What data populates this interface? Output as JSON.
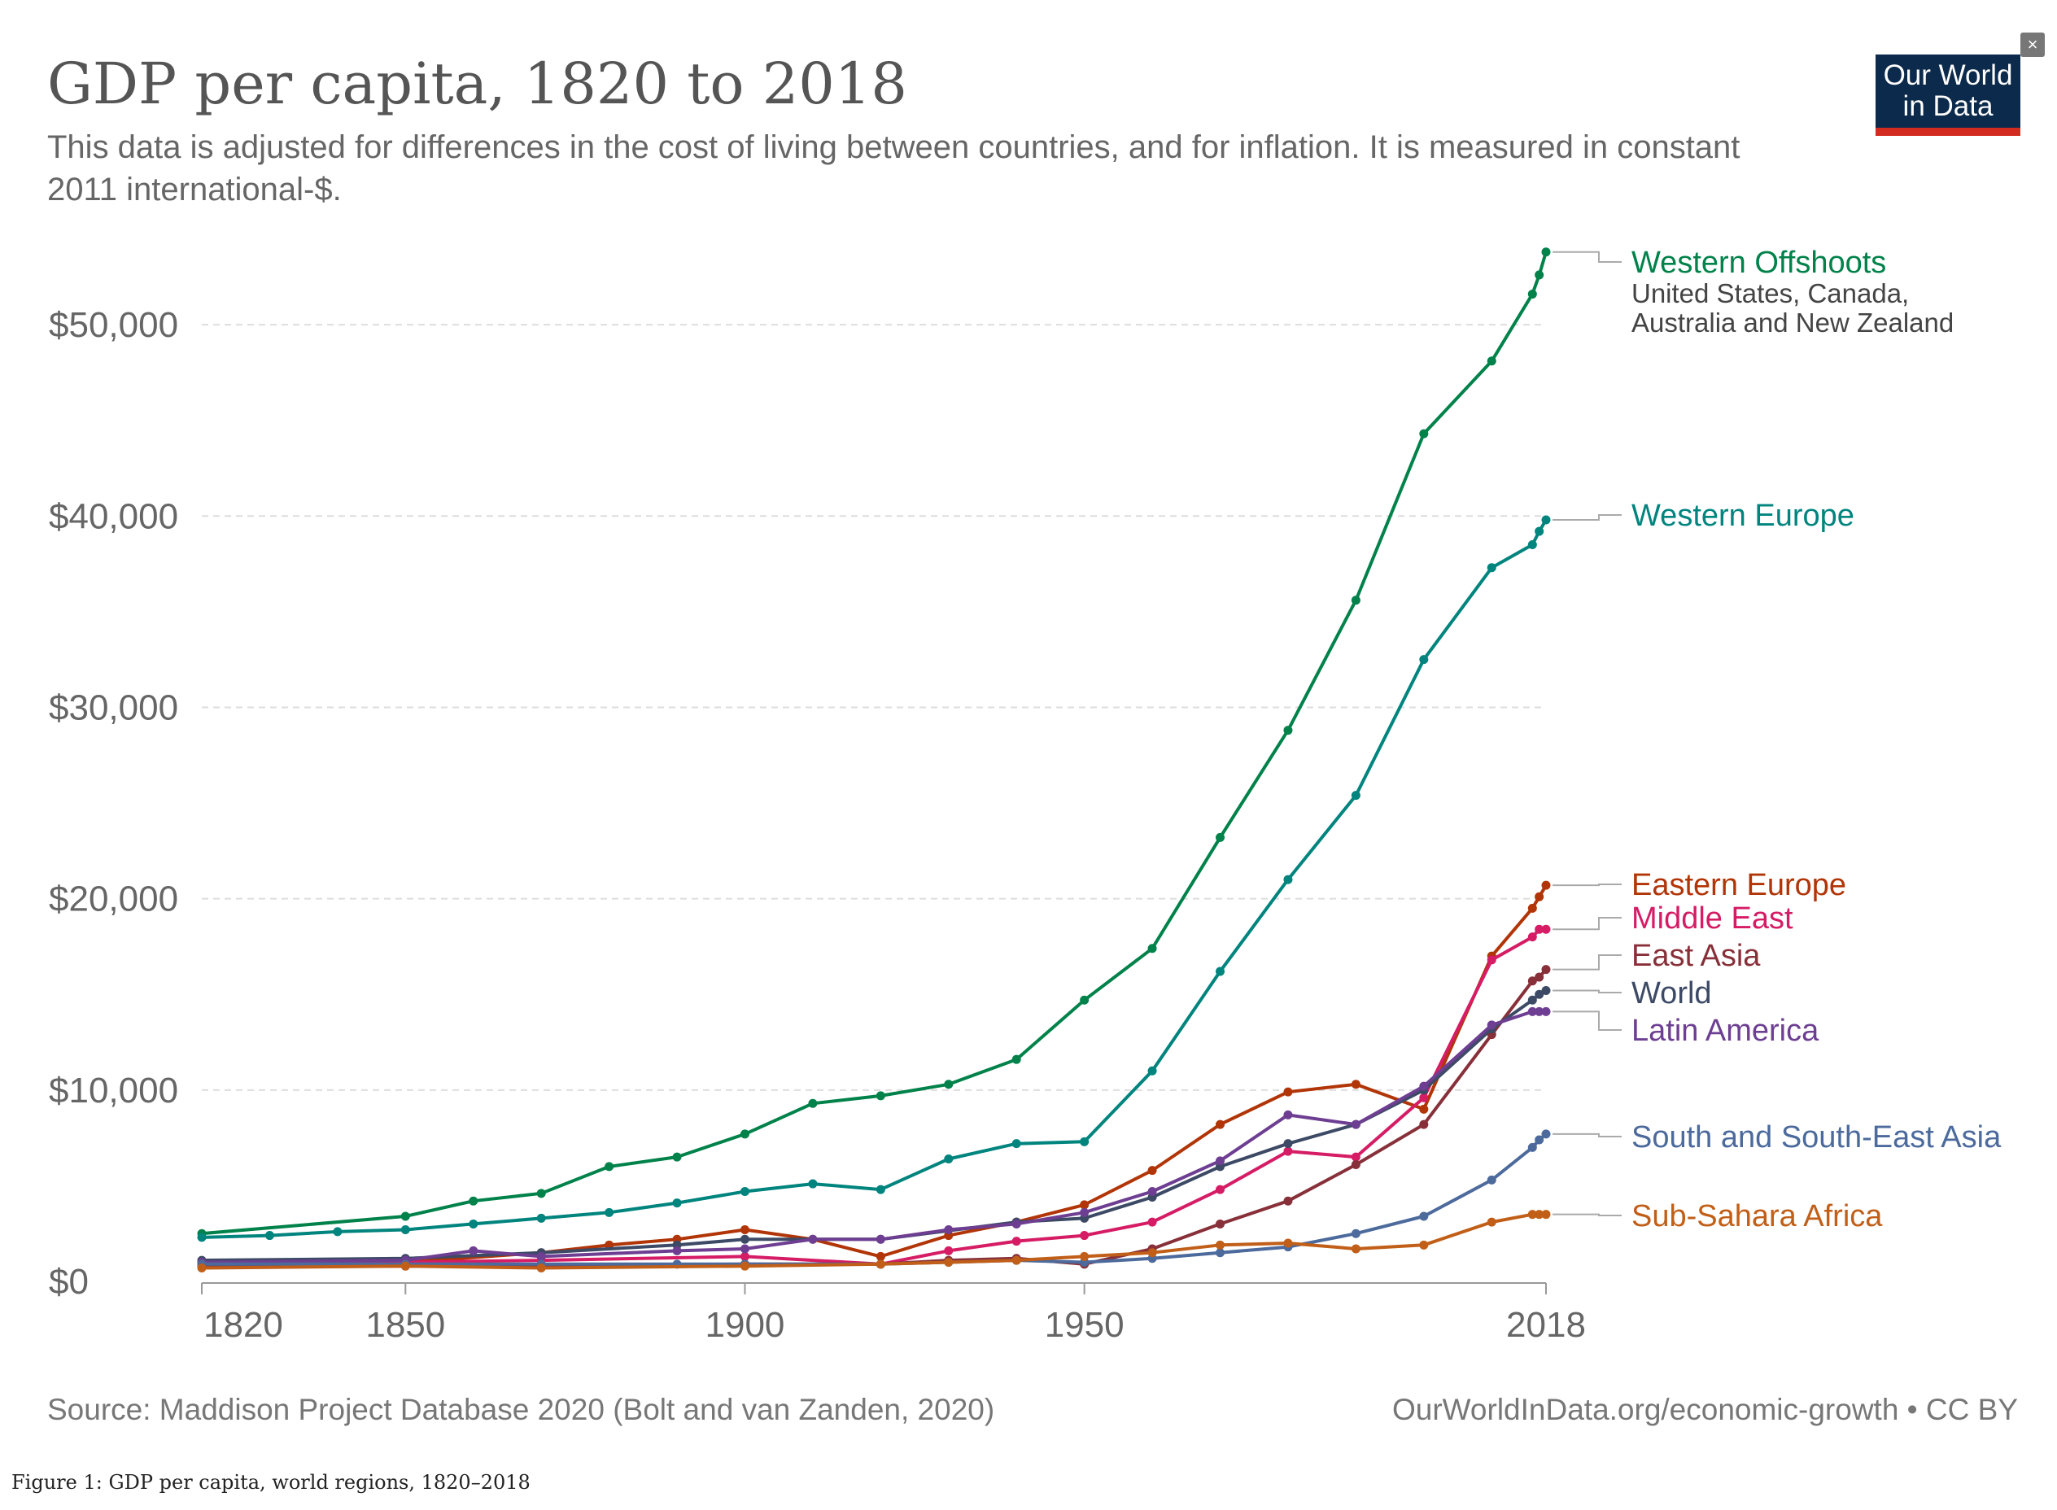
{
  "header": {
    "title": "GDP per capita, 1820 to 2018",
    "subtitle": "This data is adjusted for differences in the cost of living between countries, and for inflation. It is measured in constant 2011 international-$.",
    "logo_line1": "Our World",
    "logo_line2": "in Data",
    "close_symbol": "×"
  },
  "footer": {
    "source": "Source: Maddison Project Database 2020 (Bolt and van Zanden, 2020)",
    "credit": "OurWorldInData.org/economic-growth • CC BY"
  },
  "caption": "Figure 1: GDP per capita, world regions, 1820–2018",
  "colors": {
    "grid": "#dddddd",
    "axis_text": "#666666",
    "background": "#ffffff",
    "logo_bg": "#0c2a4b",
    "logo_bar": "#d42b21"
  },
  "chart_data": {
    "type": "line",
    "title": "GDP per capita, 1820 to 2018",
    "xlabel": "",
    "ylabel": "",
    "xlim": [
      1820,
      2018
    ],
    "ylim": [
      0,
      54000
    ],
    "x_ticks": [
      1820,
      1850,
      1900,
      1950,
      2018
    ],
    "y_ticks": [
      0,
      10000,
      20000,
      30000,
      40000,
      50000
    ],
    "y_tick_labels": [
      "$0",
      "$10,000",
      "$20,000",
      "$30,000",
      "$40,000",
      "$50,000"
    ],
    "grid": true,
    "legend": "right, labels at line ends",
    "series": [
      {
        "name": "Western Offshoots",
        "sublabel": "United States, Canada, Australia and New Zealand",
        "color": "#00824a",
        "points": [
          [
            1820,
            2500
          ],
          [
            1850,
            3400
          ],
          [
            1860,
            4200
          ],
          [
            1870,
            4600
          ],
          [
            1880,
            6000
          ],
          [
            1890,
            6500
          ],
          [
            1900,
            7700
          ],
          [
            1910,
            9300
          ],
          [
            1920,
            9700
          ],
          [
            1930,
            10300
          ],
          [
            1940,
            11600
          ],
          [
            1950,
            14700
          ],
          [
            1960,
            17400
          ],
          [
            1970,
            23200
          ],
          [
            1980,
            28800
          ],
          [
            1990,
            35600
          ],
          [
            2000,
            44300
          ],
          [
            2010,
            48100
          ],
          [
            2016,
            51600
          ],
          [
            2017,
            52600
          ],
          [
            2018,
            53800
          ]
        ]
      },
      {
        "name": "Western Europe",
        "color": "#00847e",
        "points": [
          [
            1820,
            2300
          ],
          [
            1830,
            2400
          ],
          [
            1840,
            2600
          ],
          [
            1850,
            2700
          ],
          [
            1860,
            3000
          ],
          [
            1870,
            3300
          ],
          [
            1880,
            3600
          ],
          [
            1890,
            4100
          ],
          [
            1900,
            4700
          ],
          [
            1910,
            5100
          ],
          [
            1920,
            4800
          ],
          [
            1930,
            6400
          ],
          [
            1940,
            7200
          ],
          [
            1950,
            7300
          ],
          [
            1960,
            11000
          ],
          [
            1970,
            16200
          ],
          [
            1980,
            21000
          ],
          [
            1990,
            25400
          ],
          [
            2000,
            32500
          ],
          [
            2010,
            37300
          ],
          [
            2016,
            38500
          ],
          [
            2017,
            39200
          ],
          [
            2018,
            39800
          ]
        ]
      },
      {
        "name": "Eastern Europe",
        "color": "#b13507",
        "points": [
          [
            1820,
            800
          ],
          [
            1850,
            1000
          ],
          [
            1870,
            1500
          ],
          [
            1880,
            1900
          ],
          [
            1890,
            2200
          ],
          [
            1900,
            2700
          ],
          [
            1910,
            2200
          ],
          [
            1920,
            1300
          ],
          [
            1930,
            2400
          ],
          [
            1940,
            3100
          ],
          [
            1950,
            4000
          ],
          [
            1960,
            5800
          ],
          [
            1970,
            8200
          ],
          [
            1980,
            9900
          ],
          [
            1990,
            10300
          ],
          [
            2000,
            9000
          ],
          [
            2010,
            17000
          ],
          [
            2016,
            19500
          ],
          [
            2017,
            20100
          ],
          [
            2018,
            20700
          ]
        ]
      },
      {
        "name": "Middle East",
        "color": "#d51c65",
        "points": [
          [
            1820,
            900
          ],
          [
            1850,
            1000
          ],
          [
            1870,
            1100
          ],
          [
            1900,
            1300
          ],
          [
            1920,
            900
          ],
          [
            1930,
            1600
          ],
          [
            1940,
            2100
          ],
          [
            1950,
            2400
          ],
          [
            1960,
            3100
          ],
          [
            1970,
            4800
          ],
          [
            1980,
            6800
          ],
          [
            1990,
            6500
          ],
          [
            2000,
            9600
          ],
          [
            2010,
            16800
          ],
          [
            2016,
            18000
          ],
          [
            2017,
            18400
          ],
          [
            2018,
            18400
          ]
        ]
      },
      {
        "name": "East Asia",
        "color": "#883039",
        "points": [
          [
            1820,
            800
          ],
          [
            1850,
            800
          ],
          [
            1870,
            800
          ],
          [
            1900,
            900
          ],
          [
            1920,
            900
          ],
          [
            1930,
            1100
          ],
          [
            1940,
            1200
          ],
          [
            1950,
            900
          ],
          [
            1960,
            1700
          ],
          [
            1970,
            3000
          ],
          [
            1980,
            4200
          ],
          [
            1990,
            6100
          ],
          [
            2000,
            8200
          ],
          [
            2010,
            12900
          ],
          [
            2016,
            15700
          ],
          [
            2017,
            15900
          ],
          [
            2018,
            16300
          ]
        ]
      },
      {
        "name": "World",
        "color": "#3d4a66",
        "points": [
          [
            1820,
            1100
          ],
          [
            1850,
            1200
          ],
          [
            1870,
            1500
          ],
          [
            1890,
            1900
          ],
          [
            1900,
            2200
          ],
          [
            1920,
            2200
          ],
          [
            1940,
            3100
          ],
          [
            1950,
            3300
          ],
          [
            1960,
            4400
          ],
          [
            1970,
            6000
          ],
          [
            1980,
            7200
          ],
          [
            1990,
            8200
          ],
          [
            2000,
            10000
          ],
          [
            2010,
            13200
          ],
          [
            2016,
            14700
          ],
          [
            2017,
            15000
          ],
          [
            2018,
            15200
          ]
        ]
      },
      {
        "name": "Latin America",
        "color": "#6d3e91",
        "points": [
          [
            1820,
            1000
          ],
          [
            1850,
            1100
          ],
          [
            1860,
            1600
          ],
          [
            1870,
            1300
          ],
          [
            1890,
            1600
          ],
          [
            1900,
            1700
          ],
          [
            1910,
            2200
          ],
          [
            1920,
            2200
          ],
          [
            1930,
            2700
          ],
          [
            1940,
            3000
          ],
          [
            1950,
            3600
          ],
          [
            1960,
            4700
          ],
          [
            1970,
            6300
          ],
          [
            1980,
            8700
          ],
          [
            1990,
            8200
          ],
          [
            2000,
            10200
          ],
          [
            2010,
            13400
          ],
          [
            2016,
            14100
          ],
          [
            2017,
            14100
          ],
          [
            2018,
            14100
          ]
        ]
      },
      {
        "name": "South and South-East Asia",
        "color": "#4c6a9c",
        "points": [
          [
            1820,
            900
          ],
          [
            1850,
            900
          ],
          [
            1870,
            900
          ],
          [
            1890,
            900
          ],
          [
            1900,
            900
          ],
          [
            1920,
            900
          ],
          [
            1930,
            1000
          ],
          [
            1940,
            1100
          ],
          [
            1950,
            1000
          ],
          [
            1960,
            1200
          ],
          [
            1970,
            1500
          ],
          [
            1980,
            1800
          ],
          [
            1990,
            2500
          ],
          [
            2000,
            3400
          ],
          [
            2010,
            5300
          ],
          [
            2016,
            7000
          ],
          [
            2017,
            7400
          ],
          [
            2018,
            7700
          ]
        ]
      },
      {
        "name": "Sub-Sahara Africa",
        "color": "#c15f18",
        "points": [
          [
            1820,
            700
          ],
          [
            1850,
            800
          ],
          [
            1870,
            700
          ],
          [
            1900,
            800
          ],
          [
            1920,
            900
          ],
          [
            1930,
            1000
          ],
          [
            1940,
            1100
          ],
          [
            1950,
            1300
          ],
          [
            1960,
            1500
          ],
          [
            1970,
            1900
          ],
          [
            1980,
            2000
          ],
          [
            1990,
            1700
          ],
          [
            2000,
            1900
          ],
          [
            2010,
            3100
          ],
          [
            2016,
            3500
          ],
          [
            2017,
            3500
          ],
          [
            2018,
            3500
          ]
        ]
      }
    ]
  }
}
